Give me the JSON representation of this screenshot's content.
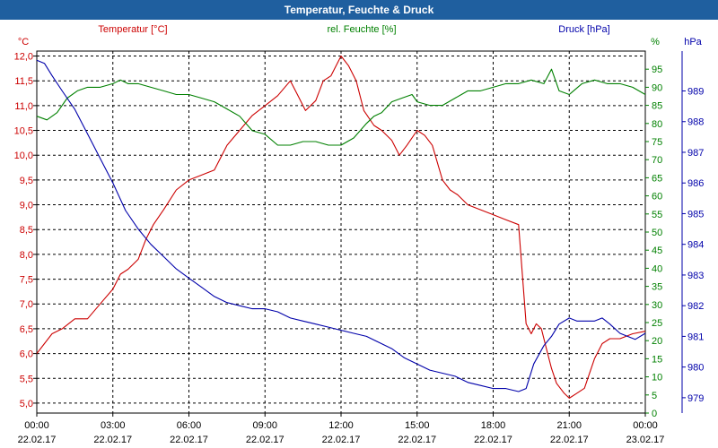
{
  "window": {
    "title": "Temperatur, Feuchte & Druck"
  },
  "chart_data": {
    "type": "line",
    "title": "Temperatur, Feuchte & Druck",
    "grid": true,
    "x_ticks": [
      {
        "time": "00:00",
        "date": "22.02.17"
      },
      {
        "time": "03:00",
        "date": "22.02.17"
      },
      {
        "time": "06:00",
        "date": "22.02.17"
      },
      {
        "time": "09:00",
        "date": "22.02.17"
      },
      {
        "time": "12:00",
        "date": "22.02.17"
      },
      {
        "time": "15:00",
        "date": "22.02.17"
      },
      {
        "time": "18:00",
        "date": "22.02.17"
      },
      {
        "time": "21:00",
        "date": "22.02.17"
      },
      {
        "time": "00:00",
        "date": "23.02.17"
      }
    ],
    "xlim": [
      0,
      24
    ],
    "axes": {
      "temperature": {
        "label": "Temperatur [°C]",
        "unit": "°C",
        "color": "#cc0000",
        "ylim": [
          4.8,
          12.1
        ],
        "ticks": [
          "12,0",
          "11,5",
          "11,0",
          "10,5",
          "10,0",
          "9,5",
          "9,0",
          "8,5",
          "8,0",
          "7,5",
          "7,0",
          "6,5",
          "6,0",
          "5,5",
          "5,0"
        ],
        "tick_values": [
          12.0,
          11.5,
          11.0,
          10.5,
          10.0,
          9.5,
          9.0,
          8.5,
          8.0,
          7.5,
          7.0,
          6.5,
          6.0,
          5.5,
          5.0
        ]
      },
      "humidity": {
        "label": "rel. Feuchte [%]",
        "unit": "%",
        "color": "#008000",
        "ylim": [
          0,
          100
        ],
        "ticks": [
          "95",
          "90",
          "85",
          "80",
          "75",
          "70",
          "65",
          "60",
          "55",
          "50",
          "45",
          "40",
          "35",
          "30",
          "25",
          "20",
          "15",
          "10",
          "5",
          "0"
        ],
        "tick_values": [
          95,
          90,
          85,
          80,
          75,
          70,
          65,
          60,
          55,
          50,
          45,
          40,
          35,
          30,
          25,
          20,
          15,
          10,
          5,
          0
        ]
      },
      "pressure": {
        "label": "Druck [hPa]",
        "unit": "hPa",
        "color": "#0000aa",
        "ylim": [
          978.5,
          990.3
        ],
        "ticks": [
          "989",
          "988",
          "987",
          "986",
          "985",
          "984",
          "983",
          "982",
          "981",
          "980",
          "979"
        ],
        "tick_values": [
          989,
          988,
          987,
          986,
          985,
          984,
          983,
          982,
          981,
          980,
          979
        ]
      }
    },
    "series": [
      {
        "name": "Temperatur",
        "axis": "temperature",
        "color": "#cc0000",
        "x": [
          0,
          0.3,
          0.6,
          1,
          1.5,
          2,
          2.5,
          3,
          3.3,
          3.6,
          4,
          4.3,
          4.6,
          5,
          5.5,
          6,
          6.5,
          7,
          7.5,
          8,
          8.5,
          9,
          9.5,
          10,
          10.3,
          10.6,
          11,
          11.3,
          11.6,
          12,
          12.3,
          12.6,
          12.9,
          13.3,
          13.6,
          14,
          14.3,
          14.6,
          15,
          15.3,
          15.6,
          16,
          16.3,
          16.6,
          17,
          17.5,
          18,
          18.5,
          19,
          19.3,
          19.5,
          19.7,
          19.9,
          20.1,
          20.3,
          20.5,
          20.8,
          21,
          21.3,
          21.6,
          22,
          22.3,
          22.6,
          23,
          23.5,
          24
        ],
        "y": [
          6.0,
          6.2,
          6.4,
          6.5,
          6.7,
          6.7,
          7.0,
          7.3,
          7.6,
          7.7,
          7.9,
          8.3,
          8.6,
          8.9,
          9.3,
          9.5,
          9.6,
          9.7,
          10.2,
          10.5,
          10.8,
          11.0,
          11.2,
          11.5,
          11.2,
          10.9,
          11.1,
          11.5,
          11.6,
          12.0,
          11.8,
          11.5,
          10.9,
          10.6,
          10.5,
          10.3,
          10.0,
          10.2,
          10.5,
          10.4,
          10.2,
          9.5,
          9.3,
          9.2,
          9.0,
          8.9,
          8.8,
          8.7,
          8.6,
          6.6,
          6.4,
          6.6,
          6.5,
          6.1,
          5.7,
          5.4,
          5.2,
          5.1,
          5.2,
          5.3,
          5.9,
          6.2,
          6.3,
          6.3,
          6.4,
          6.45
        ]
      },
      {
        "name": "rel. Feuchte",
        "axis": "humidity",
        "color": "#008000",
        "x": [
          0,
          0.4,
          0.8,
          1.2,
          1.6,
          2,
          2.5,
          3,
          3.3,
          3.6,
          4,
          4.5,
          5,
          5.5,
          6,
          6.5,
          7,
          7.5,
          8,
          8.5,
          9,
          9.5,
          10,
          10.5,
          11,
          11.5,
          12,
          12.5,
          13,
          13.3,
          13.6,
          14,
          14.4,
          14.8,
          15,
          15.5,
          16,
          16.5,
          17,
          17.5,
          18,
          18.5,
          19,
          19.5,
          20,
          20.3,
          20.6,
          21,
          21.5,
          22,
          22.5,
          23,
          23.5,
          24
        ],
        "y": [
          82,
          81,
          83,
          87,
          89,
          90,
          90,
          91,
          92,
          91,
          91,
          90,
          89,
          88,
          88,
          87,
          86,
          84,
          82,
          78,
          77,
          74,
          74,
          75,
          75,
          74,
          74,
          76,
          80,
          82,
          83,
          86,
          87,
          88,
          86,
          85,
          85,
          87,
          89,
          89,
          90,
          91,
          91,
          92,
          91,
          95,
          89,
          88,
          91,
          92,
          91,
          91,
          90,
          88
        ]
      },
      {
        "name": "Druck",
        "axis": "pressure",
        "color": "#0000aa",
        "x": [
          0,
          0.3,
          0.6,
          1,
          1.5,
          2,
          2.5,
          3,
          3.5,
          4,
          4.5,
          5,
          5.5,
          6,
          6.5,
          7,
          7.5,
          8,
          8.5,
          9,
          9.5,
          10,
          10.5,
          11,
          11.5,
          12,
          12.5,
          13,
          13.5,
          14,
          14.5,
          15,
          15.5,
          16,
          16.5,
          17,
          17.5,
          18,
          18.5,
          19,
          19.3,
          19.6,
          20,
          20.3,
          20.6,
          21,
          21.3,
          21.6,
          22,
          22.3,
          22.6,
          23,
          23.3,
          23.6,
          24
        ],
        "y": [
          990.0,
          989.9,
          989.5,
          989.0,
          988.4,
          987.6,
          986.8,
          986.0,
          985.1,
          984.5,
          984.0,
          983.6,
          983.2,
          982.9,
          982.6,
          982.3,
          982.1,
          982.0,
          981.9,
          981.9,
          981.8,
          981.6,
          981.5,
          981.4,
          981.3,
          981.2,
          981.1,
          981.0,
          980.8,
          980.6,
          980.3,
          980.1,
          979.9,
          979.8,
          979.7,
          979.5,
          979.4,
          979.3,
          979.3,
          979.2,
          979.3,
          980.1,
          980.7,
          981.0,
          981.4,
          981.6,
          981.5,
          981.5,
          981.5,
          981.6,
          981.4,
          981.1,
          981.0,
          980.9,
          981.1
        ]
      }
    ]
  }
}
